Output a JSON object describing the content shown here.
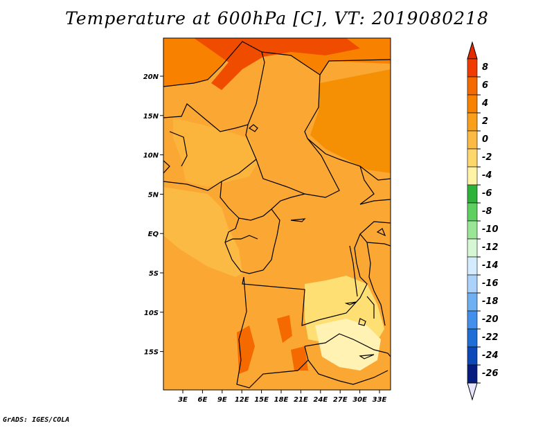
{
  "title": "Temperature at 600hPa [C], VT: 2019080218",
  "credit": "GrADS: IGES/COLA",
  "map": {
    "lon_labels": [
      "3E",
      "6E",
      "9E",
      "12E",
      "15E",
      "18E",
      "21E",
      "24E",
      "27E",
      "30E",
      "33E"
    ],
    "lat_labels": [
      "20N",
      "15N",
      "10N",
      "5N",
      "EQ",
      "5S",
      "10S",
      "15S"
    ],
    "background_color": "#fba733",
    "zones": [
      {
        "name": "north-warm-band",
        "color": "#f88200"
      },
      {
        "name": "sahara-hot",
        "color": "#f04c00"
      },
      {
        "name": "west-cool",
        "color": "#fbb43c"
      },
      {
        "name": "central-africa-cool",
        "color": "#fbba44"
      },
      {
        "name": "east-africa-warm",
        "color": "#f58f04"
      },
      {
        "name": "drc-plateau-cool",
        "color": "#fddf74"
      },
      {
        "name": "zambia-cold",
        "color": "#fff2b2"
      },
      {
        "name": "angola-hot",
        "color": "#f56a00"
      }
    ]
  },
  "colorbar": {
    "labels": [
      "8",
      "6",
      "4",
      "2",
      "0",
      "-2",
      "-4",
      "-6",
      "-8",
      "-10",
      "-12",
      "-14",
      "-16",
      "-18",
      "-20",
      "-22",
      "-24",
      "-26"
    ],
    "colors": [
      "#f03c00",
      "#f56a00",
      "#f88200",
      "#f99f1a",
      "#fbba44",
      "#fdd76c",
      "#fff3a6",
      "#2db33a",
      "#5dd060",
      "#9ae696",
      "#d6f7d4",
      "#d4ecff",
      "#aad2fb",
      "#6fb0f2",
      "#4290ec",
      "#1f6ed8",
      "#0c48b8",
      "#061c80"
    ],
    "over_color": "#e52a00",
    "under_color": "#e8e5ff"
  }
}
